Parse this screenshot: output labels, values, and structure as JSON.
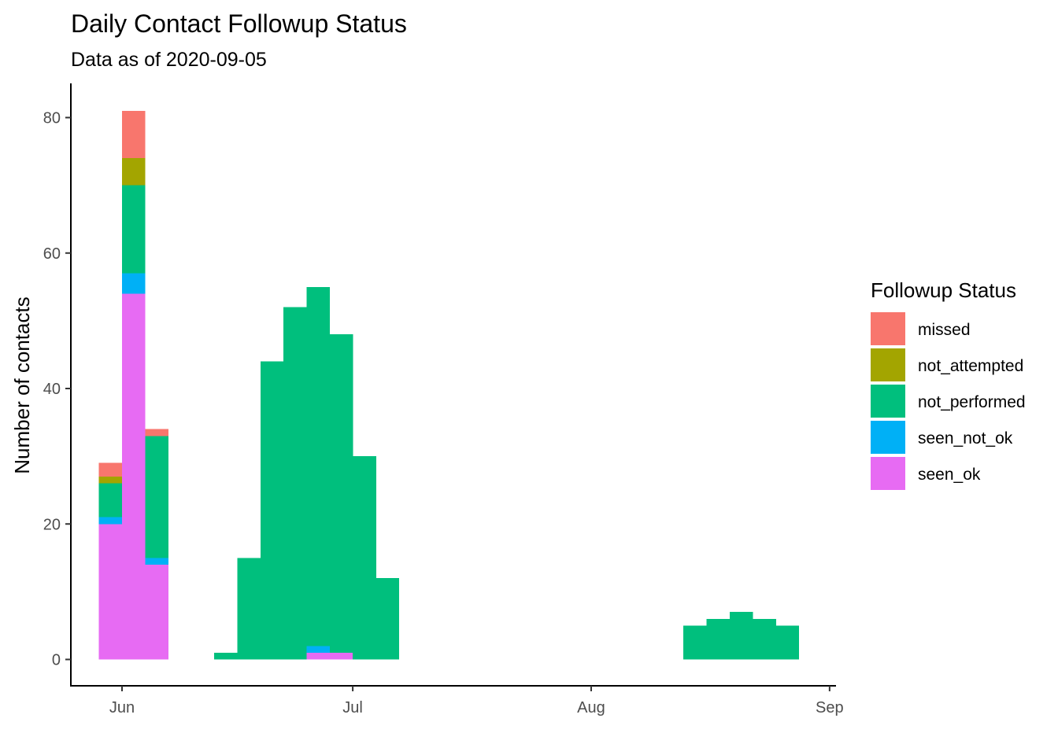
{
  "chart_data": {
    "type": "bar",
    "title": "Daily Contact Followup Status",
    "subtitle": "Data as of 2020-09-05",
    "xlabel": "",
    "ylabel": "Number of contacts",
    "ylim": [
      0,
      85
    ],
    "yticks": [
      0,
      20,
      40,
      60,
      80
    ],
    "xlim": [
      "2020-05-29",
      "2020-09-01"
    ],
    "xticks": [
      {
        "date": "2020-06-01",
        "label": "Jun"
      },
      {
        "date": "2020-07-01",
        "label": "Jul"
      },
      {
        "date": "2020-08-01",
        "label": "Aug"
      },
      {
        "date": "2020-09-01",
        "label": "Sep"
      }
    ],
    "grid": false,
    "stacked": true,
    "legend": {
      "title": "Followup Status",
      "position": "right"
    },
    "series": [
      {
        "name": "missed",
        "color": "#F8766D"
      },
      {
        "name": "not_attempted",
        "color": "#A3A500"
      },
      {
        "name": "not_performed",
        "color": "#00BF7D"
      },
      {
        "name": "seen_not_ok",
        "color": "#00B0F6"
      },
      {
        "name": "seen_ok",
        "color": "#E76BF3"
      }
    ],
    "bin_days": 3,
    "bars": [
      {
        "start": "2020-05-29",
        "values": {
          "seen_ok": 20,
          "seen_not_ok": 1,
          "not_performed": 5,
          "not_attempted": 1,
          "missed": 2
        }
      },
      {
        "start": "2020-06-01",
        "values": {
          "seen_ok": 54,
          "seen_not_ok": 3,
          "not_performed": 13,
          "not_attempted": 4,
          "missed": 7
        }
      },
      {
        "start": "2020-06-04",
        "values": {
          "seen_ok": 14,
          "seen_not_ok": 1,
          "not_performed": 18,
          "not_attempted": 0,
          "missed": 1
        }
      },
      {
        "start": "2020-06-13",
        "values": {
          "not_performed": 1
        }
      },
      {
        "start": "2020-06-16",
        "values": {
          "not_performed": 15
        }
      },
      {
        "start": "2020-06-19",
        "values": {
          "not_performed": 44
        }
      },
      {
        "start": "2020-06-22",
        "values": {
          "not_performed": 52
        }
      },
      {
        "start": "2020-06-25",
        "values": {
          "seen_ok": 1,
          "seen_not_ok": 1,
          "not_performed": 53
        }
      },
      {
        "start": "2020-06-28",
        "values": {
          "seen_ok": 1,
          "not_performed": 47
        }
      },
      {
        "start": "2020-07-01",
        "values": {
          "not_performed": 30
        }
      },
      {
        "start": "2020-07-04",
        "values": {
          "not_performed": 12
        }
      },
      {
        "start": "2020-08-13",
        "values": {
          "not_performed": 5
        }
      },
      {
        "start": "2020-08-16",
        "values": {
          "not_performed": 6
        }
      },
      {
        "start": "2020-08-19",
        "values": {
          "not_performed": 7
        }
      },
      {
        "start": "2020-08-22",
        "values": {
          "not_performed": 6
        }
      },
      {
        "start": "2020-08-25",
        "values": {
          "not_performed": 5
        }
      }
    ]
  }
}
